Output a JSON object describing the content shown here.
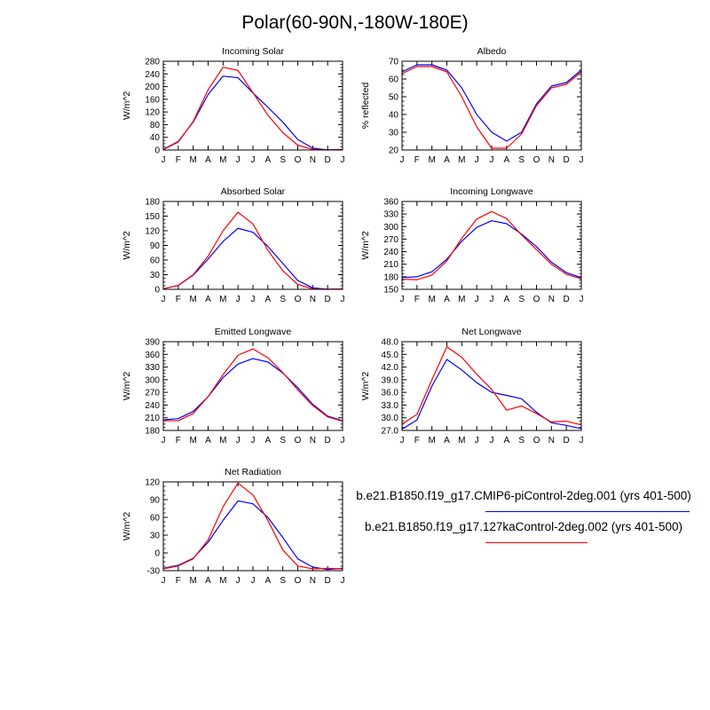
{
  "title": "Polar(60-90N,-180W-180E)",
  "colors": {
    "series_1": "#0000ff",
    "series_2": "#ff0000"
  },
  "legend": [
    {
      "label": "b.e21.B1850.f19_g17.CMIP6-piControl-2deg.001 (yrs 401-500)",
      "color": "#0000ff"
    },
    {
      "label": "b.e21.B1850.f19_g17.127kaControl-2deg.002 (yrs 401-500)",
      "color": "#ff0000"
    }
  ],
  "chart_data": [
    {
      "type": "line",
      "title": "Incoming Solar",
      "ylabel": "W/m^2",
      "categories": [
        "J",
        "F",
        "M",
        "A",
        "M",
        "J",
        "J",
        "A",
        "S",
        "O",
        "N",
        "D",
        "J"
      ],
      "ylim": [
        0,
        280
      ],
      "yticks": [
        "0",
        "40",
        "80",
        "120",
        "160",
        "200",
        "240",
        "280"
      ],
      "series": [
        {
          "name": "b.e21.B1850.f19_g17.CMIP6-piControl-2deg.001 (yrs 401-500)",
          "color": "#0000ff",
          "values": [
            2,
            27,
            88,
            175,
            233,
            228,
            180,
            135,
            88,
            33,
            6,
            0,
            2
          ]
        },
        {
          "name": "b.e21.B1850.f19_g17.127kaControl-2deg.002 (yrs 401-500)",
          "color": "#ff0000",
          "values": [
            1,
            25,
            90,
            190,
            261,
            251,
            181,
            110,
            55,
            15,
            2,
            0,
            1
          ]
        }
      ]
    },
    {
      "type": "line",
      "title": "Albedo",
      "ylabel": "% reflected",
      "categories": [
        "J",
        "F",
        "M",
        "A",
        "M",
        "J",
        "J",
        "A",
        "S",
        "O",
        "N",
        "D",
        "J"
      ],
      "ylim": [
        20,
        70
      ],
      "yticks": [
        "20",
        "30",
        "40",
        "50",
        "60",
        "70"
      ],
      "series": [
        {
          "name": "b.e21.B1850.f19_g17.CMIP6-piControl-2deg.001 (yrs 401-500)",
          "color": "#0000ff",
          "values": [
            64,
            68,
            68,
            65,
            55,
            40,
            30,
            25,
            30,
            46,
            56,
            58,
            65
          ]
        },
        {
          "name": "b.e21.B1850.f19_g17.127kaControl-2deg.002 (yrs 401-500)",
          "color": "#ff0000",
          "values": [
            63,
            67,
            67,
            64,
            50,
            33,
            21,
            21,
            29,
            45,
            55,
            57,
            64
          ]
        }
      ]
    },
    {
      "type": "line",
      "title": "Absorbed Solar",
      "ylabel": "W/m^2",
      "categories": [
        "J",
        "F",
        "M",
        "A",
        "M",
        "J",
        "J",
        "A",
        "S",
        "O",
        "N",
        "D",
        "J"
      ],
      "ylim": [
        0,
        180
      ],
      "yticks": [
        "0",
        "30",
        "60",
        "90",
        "120",
        "150",
        "180"
      ],
      "series": [
        {
          "name": "b.e21.B1850.f19_g17.CMIP6-piControl-2deg.001 (yrs 401-500)",
          "color": "#0000ff",
          "values": [
            1,
            8,
            29,
            62,
            98,
            125,
            117,
            88,
            53,
            18,
            3,
            0,
            1
          ]
        },
        {
          "name": "b.e21.B1850.f19_g17.127kaControl-2deg.002 (yrs 401-500)",
          "color": "#ff0000",
          "values": [
            1,
            8,
            30,
            68,
            120,
            158,
            134,
            80,
            38,
            10,
            1,
            0,
            1
          ]
        }
      ]
    },
    {
      "type": "line",
      "title": "Incoming Longwave",
      "ylabel": "W/m^2",
      "categories": [
        "J",
        "F",
        "M",
        "A",
        "M",
        "J",
        "J",
        "A",
        "S",
        "O",
        "N",
        "D",
        "J"
      ],
      "ylim": [
        150,
        360
      ],
      "yticks": [
        "150",
        "180",
        "210",
        "240",
        "270",
        "300",
        "330",
        "360"
      ],
      "series": [
        {
          "name": "b.e21.B1850.f19_g17.CMIP6-piControl-2deg.001 (yrs 401-500)",
          "color": "#0000ff",
          "values": [
            178,
            180,
            192,
            222,
            265,
            298,
            314,
            307,
            282,
            252,
            215,
            190,
            178
          ]
        },
        {
          "name": "b.e21.B1850.f19_g17.127kaControl-2deg.002 (yrs 401-500)",
          "color": "#ff0000",
          "values": [
            174,
            173,
            184,
            218,
            272,
            318,
            336,
            319,
            280,
            245,
            210,
            186,
            175
          ]
        }
      ]
    },
    {
      "type": "line",
      "title": "Emitted Longwave",
      "ylabel": "W/m^2",
      "categories": [
        "J",
        "F",
        "M",
        "A",
        "M",
        "J",
        "J",
        "A",
        "S",
        "O",
        "N",
        "D",
        "J"
      ],
      "ylim": [
        180,
        390
      ],
      "yticks": [
        "180",
        "210",
        "240",
        "270",
        "300",
        "330",
        "360",
        "390"
      ],
      "series": [
        {
          "name": "b.e21.B1850.f19_g17.CMIP6-piControl-2deg.001 (yrs 401-500)",
          "color": "#0000ff",
          "values": [
            205,
            208,
            225,
            260,
            305,
            337,
            350,
            342,
            316,
            281,
            242,
            214,
            203
          ]
        },
        {
          "name": "b.e21.B1850.f19_g17.127kaControl-2deg.002 (yrs 401-500)",
          "color": "#ff0000",
          "values": [
            203,
            203,
            220,
            260,
            312,
            358,
            373,
            352,
            317,
            276,
            239,
            212,
            202
          ]
        }
      ]
    },
    {
      "type": "line",
      "title": "Net Longwave",
      "ylabel": "W/m^2",
      "categories": [
        "J",
        "F",
        "M",
        "A",
        "M",
        "J",
        "J",
        "A",
        "S",
        "O",
        "N",
        "D",
        "J"
      ],
      "ylim": [
        27,
        48
      ],
      "yticks": [
        "27.0",
        "30.0",
        "33.0",
        "36.0",
        "39.0",
        "42.0",
        "45.0",
        "48.0"
      ],
      "series": [
        {
          "name": "b.e21.B1850.f19_g17.CMIP6-piControl-2deg.001 (yrs 401-500)",
          "color": "#0000ff",
          "values": [
            27.3,
            29.5,
            37.5,
            43.8,
            41.3,
            38.3,
            36.0,
            35.3,
            34.5,
            31.3,
            28.8,
            28.2,
            27.4
          ]
        },
        {
          "name": "b.e21.B1850.f19_g17.127kaControl-2deg.002 (yrs 401-500)",
          "color": "#ff0000",
          "values": [
            28.5,
            30.8,
            39.0,
            46.8,
            44.3,
            40.3,
            36.7,
            31.8,
            32.8,
            31.0,
            29.0,
            29.2,
            28.3
          ]
        }
      ]
    },
    {
      "type": "line",
      "title": "Net Radiation",
      "ylabel": "W/m^2",
      "categories": [
        "J",
        "F",
        "M",
        "A",
        "M",
        "J",
        "J",
        "A",
        "S",
        "O",
        "N",
        "D",
        "J"
      ],
      "ylim": [
        -30,
        120
      ],
      "yticks": [
        "-30",
        "0",
        "30",
        "60",
        "90",
        "120"
      ],
      "series": [
        {
          "name": "b.e21.B1850.f19_g17.CMIP6-piControl-2deg.001 (yrs 401-500)",
          "color": "#0000ff",
          "values": [
            -26,
            -21,
            -9,
            18,
            55,
            88,
            83,
            60,
            26,
            -10,
            -24,
            -28,
            -26
          ]
        },
        {
          "name": "b.e21.B1850.f19_g17.127kaControl-2deg.002 (yrs 401-500)",
          "color": "#ff0000",
          "values": [
            -27,
            -22,
            -10,
            22,
            78,
            118,
            98,
            55,
            5,
            -22,
            -27,
            -26,
            -27
          ]
        }
      ]
    }
  ]
}
